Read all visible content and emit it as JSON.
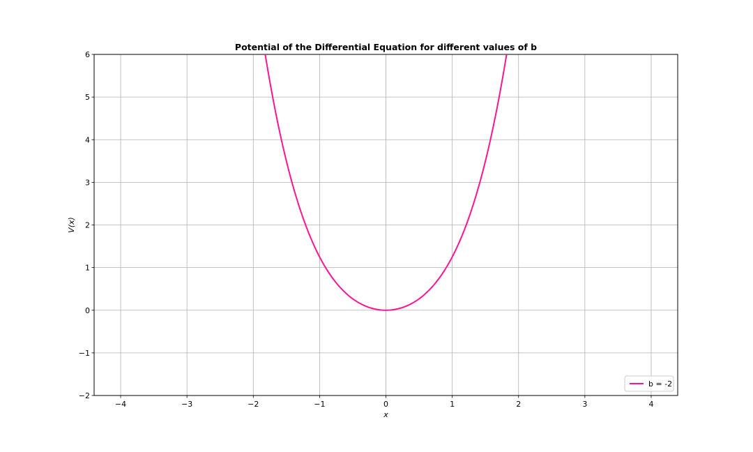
{
  "chart_data": {
    "type": "line",
    "title": "Potential of the Differential Equation for different values of b",
    "xlabel": "x",
    "ylabel": "V(x)",
    "xlim": [
      -4.4,
      4.4
    ],
    "ylim": [
      -2,
      6
    ],
    "xticks": [
      -4,
      -3,
      -2,
      -1,
      0,
      1,
      2,
      3,
      4
    ],
    "xtick_labels": [
      "−4",
      "−3",
      "−2",
      "−1",
      "0",
      "1",
      "2",
      "3",
      "4"
    ],
    "yticks": [
      -2,
      -1,
      0,
      1,
      2,
      3,
      4,
      5,
      6
    ],
    "ytick_labels": [
      "−2",
      "−1",
      "0",
      "1",
      "2",
      "3",
      "4",
      "5",
      "6"
    ],
    "grid": true,
    "legend_position": "lower-right",
    "series": [
      {
        "name": "b = -2",
        "color": "#ff1493",
        "x": [
          -1.82,
          -1.7,
          -1.6,
          -1.5,
          -1.4,
          -1.3,
          -1.2,
          -1.1,
          -1.0,
          -0.9,
          -0.8,
          -0.7,
          -0.6,
          -0.5,
          -0.4,
          -0.3,
          -0.2,
          -0.1,
          0.0,
          0.1,
          0.2,
          0.3,
          0.4,
          0.5,
          0.6,
          0.7,
          0.8,
          0.9,
          1.0,
          1.1,
          1.2,
          1.3,
          1.4,
          1.5,
          1.6,
          1.7,
          1.82
        ],
        "y": [
          6.0,
          4.53,
          3.56,
          2.77,
          2.14,
          1.65,
          1.24,
          0.97,
          1.25,
          0.96,
          0.74,
          0.55,
          0.39,
          0.27,
          0.17,
          0.095,
          0.042,
          0.01,
          0.0,
          0.01,
          0.042,
          0.095,
          0.17,
          0.27,
          0.39,
          0.55,
          0.74,
          0.96,
          1.25,
          0.97,
          1.24,
          1.65,
          2.14,
          2.77,
          3.56,
          4.53,
          6.0
        ]
      }
    ]
  }
}
